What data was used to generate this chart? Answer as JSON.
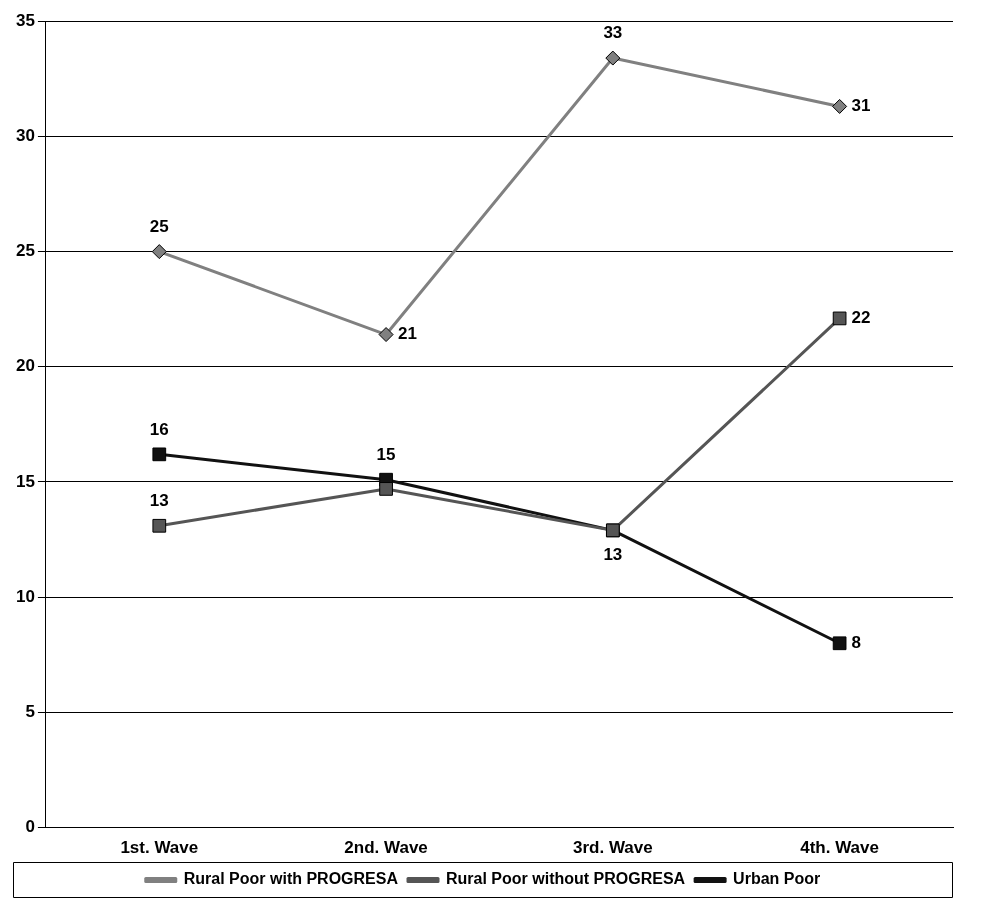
{
  "chart_data": {
    "type": "line",
    "categories": [
      "1st. Wave",
      "2nd. Wave",
      "3rd. Wave",
      "4th. Wave"
    ],
    "series": [
      {
        "name": "Rural Poor with PROGRESA",
        "color": "#808080",
        "marker": "diamond",
        "values": [
          25,
          21.4,
          33.4,
          31.3
        ],
        "value_labels": [
          "25",
          "21",
          "33",
          "31"
        ]
      },
      {
        "name": "Rural Poor without PROGRESA",
        "color": "#555555",
        "marker": "square",
        "values": [
          13.1,
          14.7,
          12.9,
          22.1
        ],
        "value_labels": [
          "13",
          null,
          null,
          "22"
        ]
      },
      {
        "name": "Urban Poor",
        "color": "#111111",
        "marker": "square",
        "values": [
          16.2,
          15.1,
          12.9,
          8.0
        ],
        "value_labels": [
          "16",
          "15",
          "13",
          "8"
        ]
      }
    ],
    "ylim": [
      0,
      35
    ],
    "yticks": [
      0,
      5,
      10,
      15,
      20,
      25,
      30,
      35
    ],
    "grid": "y",
    "legend": "bottom"
  }
}
